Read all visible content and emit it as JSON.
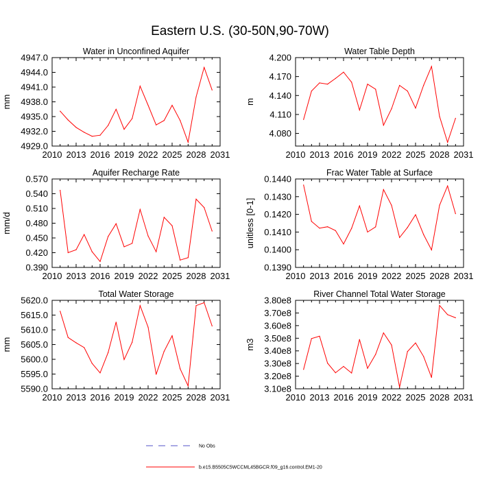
{
  "title": "Eastern U.S. (30-50N,90-70W)",
  "line_color": "#ff0000",
  "obs_color": "#5050c8",
  "legend": {
    "obs_label": "No Obs",
    "model_label": "b.e15.B5505C5WCCML45BGCR.f09_g16.control.EM1-20"
  },
  "chart_data": [
    {
      "type": "line",
      "title": "Water in Unconfined Aquifer",
      "ylabel": "mm",
      "xlim": [
        2010,
        2031
      ],
      "xticks": [
        "2010",
        "2013",
        "2016",
        "2019",
        "2022",
        "2025",
        "2028",
        "2031"
      ],
      "ylim": [
        4929.0,
        4947.0
      ],
      "yticks": [
        "4929.0",
        "4932.0",
        "4935.0",
        "4938.0",
        "4941.0",
        "4944.0",
        "4947.0"
      ],
      "x": [
        2011,
        2012,
        2013,
        2014,
        2015,
        2016,
        2017,
        2018,
        2019,
        2020,
        2021,
        2022,
        2023,
        2024,
        2025,
        2026,
        2027,
        2028,
        2029,
        2030
      ],
      "values": [
        4936.1,
        4934.3,
        4932.8,
        4931.8,
        4931.0,
        4931.2,
        4933.2,
        4936.5,
        4932.4,
        4934.6,
        4941.2,
        4937.3,
        4933.3,
        4934.2,
        4937.3,
        4934.2,
        4929.8,
        4939.0,
        4945.0,
        4940.4
      ]
    },
    {
      "type": "line",
      "title": "Water Table Depth",
      "ylabel": "m",
      "xlim": [
        2010,
        2031
      ],
      "xticks": [
        "2010",
        "2013",
        "2016",
        "2019",
        "2022",
        "2025",
        "2028",
        "2031"
      ],
      "ylim": [
        4.06,
        4.2
      ],
      "yticks": [
        "4.080",
        "4.110",
        "4.140",
        "4.170",
        "4.200"
      ],
      "x": [
        2011,
        2012,
        2013,
        2014,
        2015,
        2016,
        2017,
        2018,
        2019,
        2020,
        2021,
        2022,
        2023,
        2024,
        2025,
        2026,
        2027,
        2028,
        2029,
        2030
      ],
      "values": [
        4.102,
        4.147,
        4.16,
        4.158,
        4.167,
        4.177,
        4.161,
        4.117,
        4.158,
        4.15,
        4.093,
        4.119,
        4.156,
        4.147,
        4.12,
        4.156,
        4.186,
        4.107,
        4.066,
        4.104
      ]
    },
    {
      "type": "line",
      "title": "Aquifer Recharge Rate",
      "ylabel": "mm/d",
      "xlim": [
        2010,
        2031
      ],
      "xticks": [
        "2010",
        "2013",
        "2016",
        "2019",
        "2022",
        "2025",
        "2028",
        "2031"
      ],
      "ylim": [
        0.39,
        0.57
      ],
      "yticks": [
        "0.390",
        "0.420",
        "0.450",
        "0.480",
        "0.510",
        "0.540",
        "0.570"
      ],
      "x": [
        2011,
        2012,
        2013,
        2014,
        2015,
        2016,
        2017,
        2018,
        2019,
        2020,
        2021,
        2022,
        2023,
        2024,
        2025,
        2026,
        2027,
        2028,
        2029,
        2030
      ],
      "values": [
        0.547,
        0.42,
        0.426,
        0.457,
        0.422,
        0.402,
        0.453,
        0.479,
        0.432,
        0.439,
        0.508,
        0.454,
        0.422,
        0.492,
        0.475,
        0.405,
        0.41,
        0.529,
        0.512,
        0.464
      ]
    },
    {
      "type": "line",
      "title": "Frac Water Table at Surface",
      "ylabel": "unitless [0-1]",
      "xlim": [
        2010,
        2031
      ],
      "xticks": [
        "2010",
        "2013",
        "2016",
        "2019",
        "2022",
        "2025",
        "2028",
        "2031"
      ],
      "ylim": [
        0.139,
        0.144
      ],
      "yticks": [
        "0.1390",
        "0.1400",
        "0.1410",
        "0.1420",
        "0.1430",
        "0.1440"
      ],
      "x": [
        2011,
        2012,
        2013,
        2014,
        2015,
        2016,
        2017,
        2018,
        2019,
        2020,
        2021,
        2022,
        2023,
        2024,
        2025,
        2026,
        2027,
        2028,
        2029,
        2030
      ],
      "values": [
        0.14366,
        0.1416,
        0.14122,
        0.1413,
        0.14108,
        0.14032,
        0.14121,
        0.14248,
        0.141,
        0.14129,
        0.1434,
        0.14251,
        0.14069,
        0.14126,
        0.14198,
        0.14086,
        0.13999,
        0.14251,
        0.14361,
        0.14204
      ]
    },
    {
      "type": "line",
      "title": "Total Water Storage",
      "ylabel": "mm",
      "xlim": [
        2010,
        2031
      ],
      "xticks": [
        "2010",
        "2013",
        "2016",
        "2019",
        "2022",
        "2025",
        "2028",
        "2031"
      ],
      "ylim": [
        5590.0,
        5620.0
      ],
      "yticks": [
        "5590.0",
        "5595.0",
        "5600.0",
        "5605.0",
        "5610.0",
        "5615.0",
        "5620.0"
      ],
      "x": [
        2011,
        2012,
        2013,
        2014,
        2015,
        2016,
        2017,
        2018,
        2019,
        2020,
        2021,
        2022,
        2023,
        2024,
        2025,
        2026,
        2027,
        2028,
        2029,
        2030
      ],
      "values": [
        5616.3,
        5607.4,
        5605.6,
        5604.0,
        5598.6,
        5595.4,
        5602.3,
        5612.6,
        5599.9,
        5605.8,
        5618.2,
        5610.9,
        5594.9,
        5602.7,
        5608.0,
        5596.8,
        5591.0,
        5618.2,
        5619.2,
        5611.3
      ]
    },
    {
      "type": "line",
      "title": "River Channel Total Water Storage",
      "ylabel": "m3",
      "xlim": [
        2010,
        2031
      ],
      "xticks": [
        "2010",
        "2013",
        "2016",
        "2019",
        "2022",
        "2025",
        "2028",
        "2031"
      ],
      "ylim": [
        310000000.0,
        380000000.0
      ],
      "yticks": [
        "3.10e8",
        "3.20e8",
        "3.30e8",
        "3.40e8",
        "3.50e8",
        "3.60e8",
        "3.70e8",
        "3.80e8"
      ],
      "x": [
        2011,
        2012,
        2013,
        2014,
        2015,
        2016,
        2017,
        2018,
        2019,
        2020,
        2021,
        2022,
        2023,
        2024,
        2025,
        2026,
        2027,
        2028,
        2029,
        2030
      ],
      "values": [
        325300000.0,
        349700000.0,
        351600000.0,
        330300000.0,
        322700000.0,
        327700000.0,
        322500000.0,
        349000000.0,
        326200000.0,
        337200000.0,
        354200000.0,
        344700000.0,
        311300000.0,
        339500000.0,
        346300000.0,
        335600000.0,
        319000000.0,
        376000000.0,
        368700000.0,
        366200000.0
      ]
    }
  ]
}
